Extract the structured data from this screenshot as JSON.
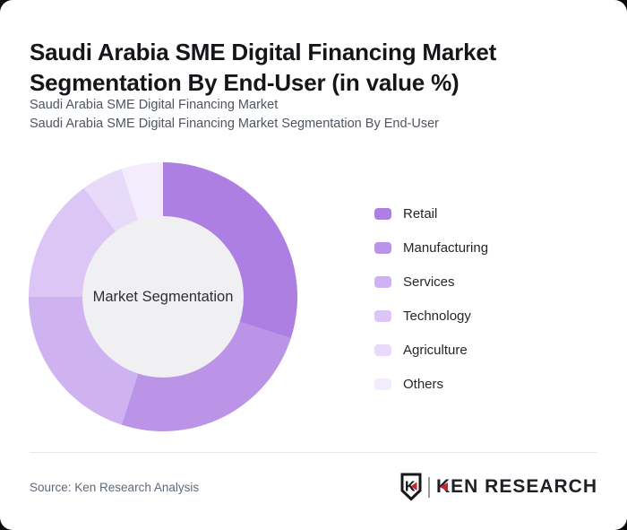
{
  "header": {
    "title": "Saudi Arabia SME Digital Financing Market Segmentation By End-User (in value %)",
    "subtitle_line1": "Saudi Arabia SME Digital Financing Market",
    "subtitle_line2": "Saudi Arabia SME Digital Financing Market Segmentation By End-User"
  },
  "chart_data": {
    "type": "pie",
    "variant": "donut",
    "title": "Saudi Arabia SME Digital Financing Market Segmentation By End-User (in value %)",
    "labels": [
      "Retail",
      "Manufacturing",
      "Services",
      "Technology",
      "Agriculture",
      "Others"
    ],
    "values": [
      30,
      25,
      20,
      15,
      5,
      5
    ],
    "unit": "%",
    "colors": [
      "#ad7fe3",
      "#bb94e8",
      "#cfb3f0",
      "#dbc6f5",
      "#e8daf9",
      "#f3ecfc"
    ],
    "center_label": "Market Segmentation",
    "center_bg": "#f0eff1",
    "donut_hole_ratio": 0.6,
    "start_angle_deg": 0,
    "direction": "clockwise",
    "legend_position": "right"
  },
  "footer": {
    "source": "Source: Ken Research Analysis",
    "logo": {
      "badge_letter": "K",
      "wordmark_k": "K",
      "wordmark_rest": "EN RESEARCH",
      "red": "#c1272d",
      "dark": "#202027"
    }
  }
}
